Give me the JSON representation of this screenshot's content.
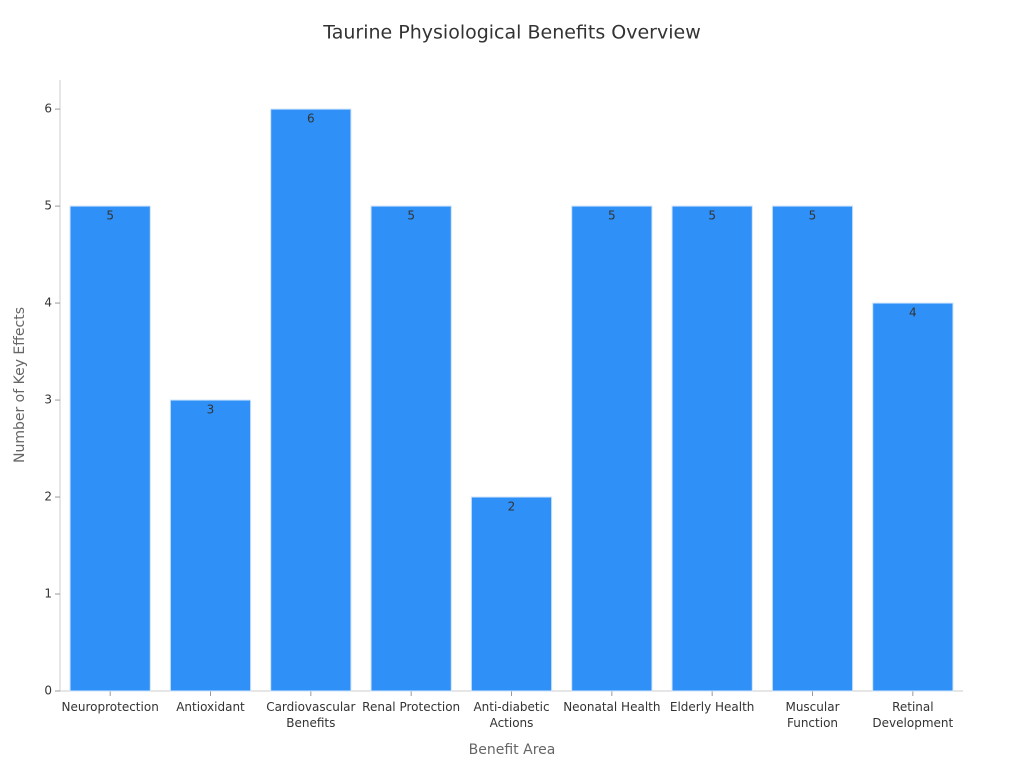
{
  "chart_data": {
    "type": "bar",
    "title": "Taurine Physiological Benefits Overview",
    "x_label": "Benefit Area",
    "y_label": "Number of Key Effects",
    "categories": [
      "Neuroprotection",
      "Antioxidant",
      "Cardiovascular Benefits",
      "Renal Protection",
      "Anti-diabetic Actions",
      "Neonatal Health",
      "Elderly Health",
      "Muscular Function",
      "Retinal Development"
    ],
    "values": [
      5,
      3,
      6,
      5,
      2,
      5,
      5,
      5,
      4
    ],
    "color": "#2f91f7",
    "ylim": [
      0,
      6.3
    ],
    "yticks": [
      0,
      1,
      2,
      3,
      4,
      5,
      6
    ],
    "grid": false
  }
}
